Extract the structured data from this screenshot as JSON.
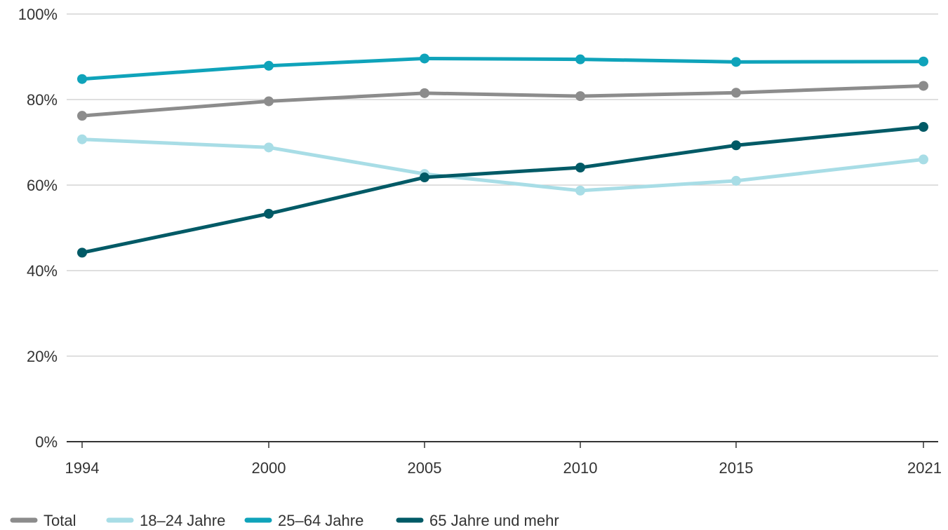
{
  "chart_data": {
    "type": "line",
    "x": [
      1994,
      2000,
      2005,
      2010,
      2015,
      2021
    ],
    "x_tick_labels": [
      "1994",
      "2000",
      "2005",
      "2010",
      "2015",
      "2021"
    ],
    "y_ticks": [
      0,
      20,
      40,
      60,
      80,
      100
    ],
    "y_tick_labels": [
      "0%",
      "20%",
      "40%",
      "60%",
      "80%",
      "100%"
    ],
    "ylim": [
      0,
      100
    ],
    "grid": "horizontal",
    "legend_position": "bottom",
    "series": [
      {
        "name": "Total",
        "color": "#8c8c8c",
        "values": [
          76.2,
          79.6,
          81.5,
          80.8,
          81.6,
          83.2
        ]
      },
      {
        "name": "18–24 Jahre",
        "color": "#a8dde6",
        "values": [
          70.7,
          68.8,
          62.6,
          58.7,
          61.0,
          66.0
        ]
      },
      {
        "name": "25–64 Jahre",
        "color": "#0fa3ba",
        "values": [
          84.8,
          87.9,
          89.6,
          89.4,
          88.8,
          88.9
        ]
      },
      {
        "name": "65 Jahre und mehr",
        "color": "#005a66",
        "values": [
          44.2,
          53.3,
          61.8,
          64.1,
          69.3,
          73.6
        ]
      }
    ]
  }
}
